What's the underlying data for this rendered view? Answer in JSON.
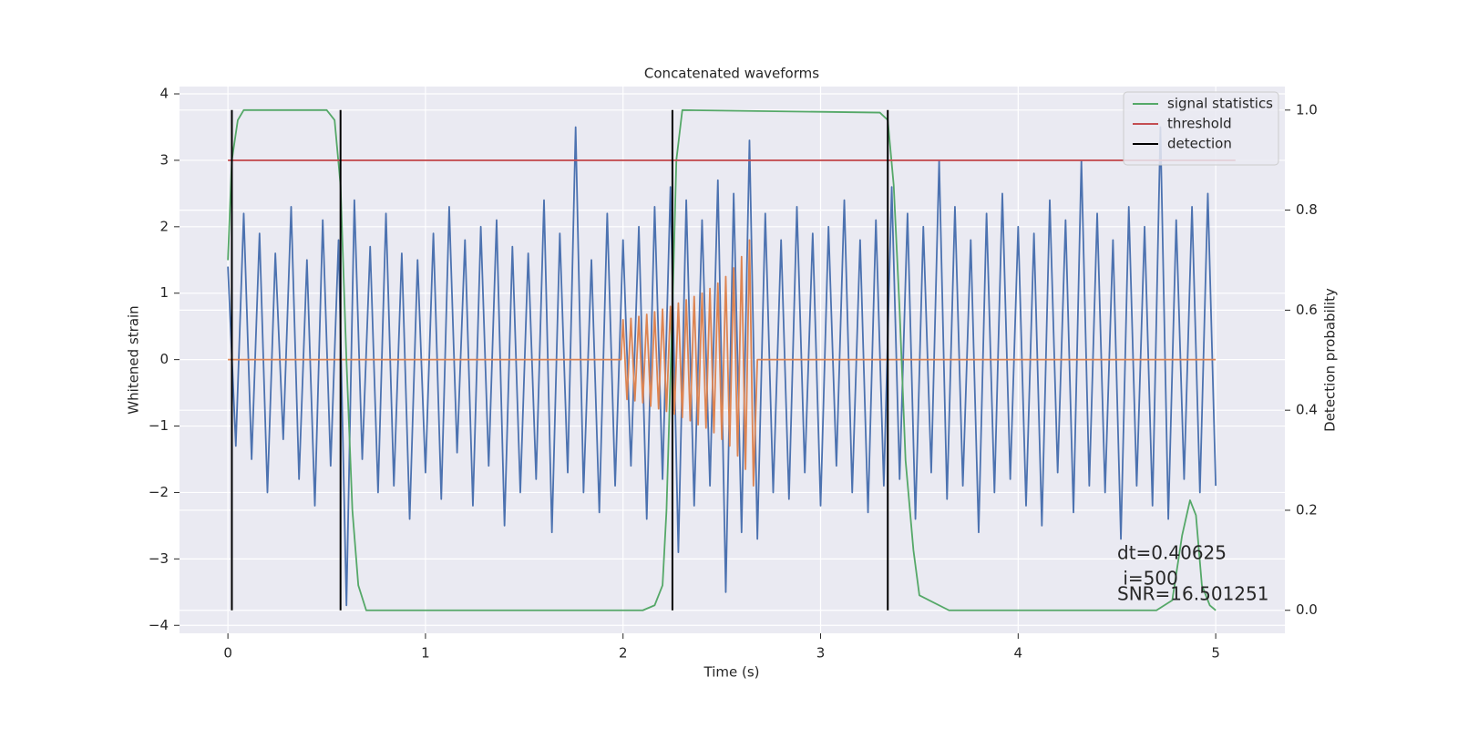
{
  "chart_data": {
    "type": "line",
    "title": "Concatenated waveforms",
    "xlabel": "Time (s)",
    "ylabel": "Whitened strain",
    "y2label": "Detection probability",
    "xlim": [
      -0.245,
      5.35
    ],
    "ylim": [
      -4.12,
      4.11
    ],
    "y2lim": [
      -0.046,
      1.047
    ],
    "xticks": [
      0,
      1,
      2,
      3,
      4,
      5
    ],
    "yticks": [
      {
        "value": -4,
        "label": "−4"
      },
      {
        "value": -3,
        "label": "−3"
      },
      {
        "value": -2,
        "label": "−2"
      },
      {
        "value": -1,
        "label": "−1"
      },
      0,
      1,
      2,
      3,
      4
    ],
    "y2ticks": [
      {
        "value": 0,
        "label": "0.0"
      },
      {
        "value": 0.2,
        "label": "0.2"
      },
      {
        "value": 0.4,
        "label": "0.4"
      },
      {
        "value": 0.6,
        "label": "0.6"
      },
      {
        "value": 0.8,
        "label": "0.8"
      },
      {
        "value": 1,
        "label": "1.0"
      }
    ],
    "grid": true,
    "legend": "upper right",
    "series": [
      {
        "color": "#4c72b0",
        "x": [
          0,
          0.04,
          0.08,
          0.12,
          0.16,
          0.2,
          0.24,
          0.28,
          0.32,
          0.36,
          0.4,
          0.44,
          0.48,
          0.52,
          0.56,
          0.6,
          0.64,
          0.68,
          0.72,
          0.76,
          0.8,
          0.84,
          0.88,
          0.92,
          0.96,
          1.0,
          1.04,
          1.08,
          1.12,
          1.16,
          1.2,
          1.24,
          1.28,
          1.32,
          1.36,
          1.4,
          1.44,
          1.48,
          1.52,
          1.56,
          1.6,
          1.64,
          1.68,
          1.72,
          1.76,
          1.8,
          1.84,
          1.88,
          1.92,
          1.96,
          2.0,
          2.04,
          2.08,
          2.12,
          2.16,
          2.2,
          2.24,
          2.28,
          2.32,
          2.36,
          2.4,
          2.44,
          2.48,
          2.52,
          2.56,
          2.6,
          2.64,
          2.68,
          2.72,
          2.76,
          2.8,
          2.84,
          2.88,
          2.92,
          2.96,
          3.0,
          3.04,
          3.08,
          3.12,
          3.16,
          3.2,
          3.24,
          3.28,
          3.32,
          3.36,
          3.4,
          3.44,
          3.48,
          3.52,
          3.56,
          3.6,
          3.64,
          3.68,
          3.72,
          3.76,
          3.8,
          3.84,
          3.88,
          3.92,
          3.96,
          4.0,
          4.04,
          4.08,
          4.12,
          4.16,
          4.2,
          4.24,
          4.28,
          4.32,
          4.36,
          4.4,
          4.44,
          4.48,
          4.52,
          4.56,
          4.6,
          4.64,
          4.68,
          4.72,
          4.76,
          4.8,
          4.84,
          4.88,
          4.92,
          4.96,
          5.0
        ],
        "values": [
          1.4,
          -1.3,
          2.2,
          -1.5,
          1.9,
          -2.0,
          1.6,
          -1.2,
          2.3,
          -1.8,
          1.5,
          -2.2,
          2.1,
          -1.6,
          1.8,
          -3.7,
          2.4,
          -1.5,
          1.7,
          -2.0,
          2.2,
          -1.9,
          1.6,
          -2.4,
          1.5,
          -1.7,
          1.9,
          -2.1,
          2.3,
          -1.4,
          1.8,
          -2.2,
          2.0,
          -1.6,
          2.1,
          -2.5,
          1.7,
          -2.0,
          1.6,
          -1.8,
          2.4,
          -2.6,
          1.9,
          -1.7,
          3.5,
          -2.0,
          1.5,
          -2.3,
          2.2,
          -1.9,
          1.8,
          -1.6,
          2.0,
          -2.4,
          2.3,
          -1.8,
          2.6,
          -2.9,
          2.4,
          -2.2,
          2.1,
          -1.9,
          2.7,
          -3.5,
          2.5,
          -2.6,
          3.3,
          -2.7,
          2.2,
          -2.0,
          1.8,
          -2.1,
          2.3,
          -1.7,
          1.9,
          -2.2,
          2.0,
          -1.6,
          2.4,
          -2.0,
          1.8,
          -2.3,
          2.1,
          -1.9,
          2.6,
          -1.8,
          2.2,
          -2.4,
          2.0,
          -1.7,
          3.0,
          -2.1,
          2.3,
          -1.9,
          1.8,
          -2.6,
          2.2,
          -2.0,
          2.5,
          -1.8,
          2.0,
          -2.2,
          1.9,
          -2.5,
          2.4,
          -1.7,
          2.1,
          -2.3,
          3.0,
          -1.9,
          2.2,
          -2.0,
          1.8,
          -2.7,
          2.3,
          -1.9,
          2.0,
          -2.2,
          3.5,
          -2.4,
          2.1,
          -1.8,
          2.3,
          -2.0,
          2.5,
          -1.9
        ]
      },
      {
        "color": "#dd8452",
        "x": [
          0,
          1.99,
          2.0,
          2.02,
          2.04,
          2.06,
          2.08,
          2.1,
          2.12,
          2.14,
          2.16,
          2.18,
          2.2,
          2.22,
          2.24,
          2.26,
          2.28,
          2.3,
          2.32,
          2.34,
          2.36,
          2.38,
          2.4,
          2.42,
          2.44,
          2.46,
          2.48,
          2.5,
          2.52,
          2.54,
          2.56,
          2.58,
          2.6,
          2.62,
          2.64,
          2.66,
          2.68,
          5
        ],
        "values": [
          0,
          0,
          0.6,
          -0.6,
          0.62,
          -0.62,
          0.65,
          -0.65,
          0.68,
          -0.7,
          0.72,
          -0.74,
          0.76,
          -0.78,
          0.8,
          -0.82,
          0.85,
          -0.87,
          0.9,
          -0.92,
          0.95,
          -0.98,
          1.0,
          -1.03,
          1.07,
          -1.1,
          1.15,
          -1.2,
          1.25,
          -1.3,
          1.38,
          -1.45,
          1.55,
          -1.65,
          1.8,
          -1.9,
          0,
          0
        ]
      },
      {
        "name": "signal statistics",
        "color": "#55a868",
        "axis": "y2",
        "x": [
          0,
          0.02,
          0.05,
          0.08,
          0.5,
          0.54,
          0.57,
          0.6,
          0.63,
          0.66,
          0.7,
          2.1,
          2.16,
          2.2,
          2.22,
          2.25,
          2.27,
          2.3,
          3.3,
          3.34,
          3.37,
          3.4,
          3.43,
          3.47,
          3.5,
          3.55,
          3.65,
          4.7,
          4.78,
          4.83,
          4.87,
          4.9,
          4.93,
          4.97,
          5.0
        ],
        "values": [
          0.7,
          0.9,
          0.98,
          1.0,
          1.0,
          0.98,
          0.85,
          0.5,
          0.2,
          0.05,
          0.0,
          0.0,
          0.01,
          0.05,
          0.2,
          0.6,
          0.9,
          1.0,
          0.995,
          0.98,
          0.85,
          0.6,
          0.3,
          0.12,
          0.03,
          0.02,
          0.0,
          0.0,
          0.02,
          0.15,
          0.22,
          0.19,
          0.05,
          0.01,
          0.0
        ]
      },
      {
        "name": "threshold",
        "color": "#c44e52",
        "x": [
          0,
          5.1
        ],
        "values": [
          3,
          3
        ]
      }
    ],
    "detections": {
      "name": "detection",
      "color": "#000000",
      "axis": "y2",
      "x": [
        0.02,
        0.57,
        2.25,
        3.34
      ],
      "ymin": 0,
      "ymax": 1
    },
    "annotations": [
      "dt=0.40625",
      " i=500",
      "SNR=16.501251"
    ]
  }
}
